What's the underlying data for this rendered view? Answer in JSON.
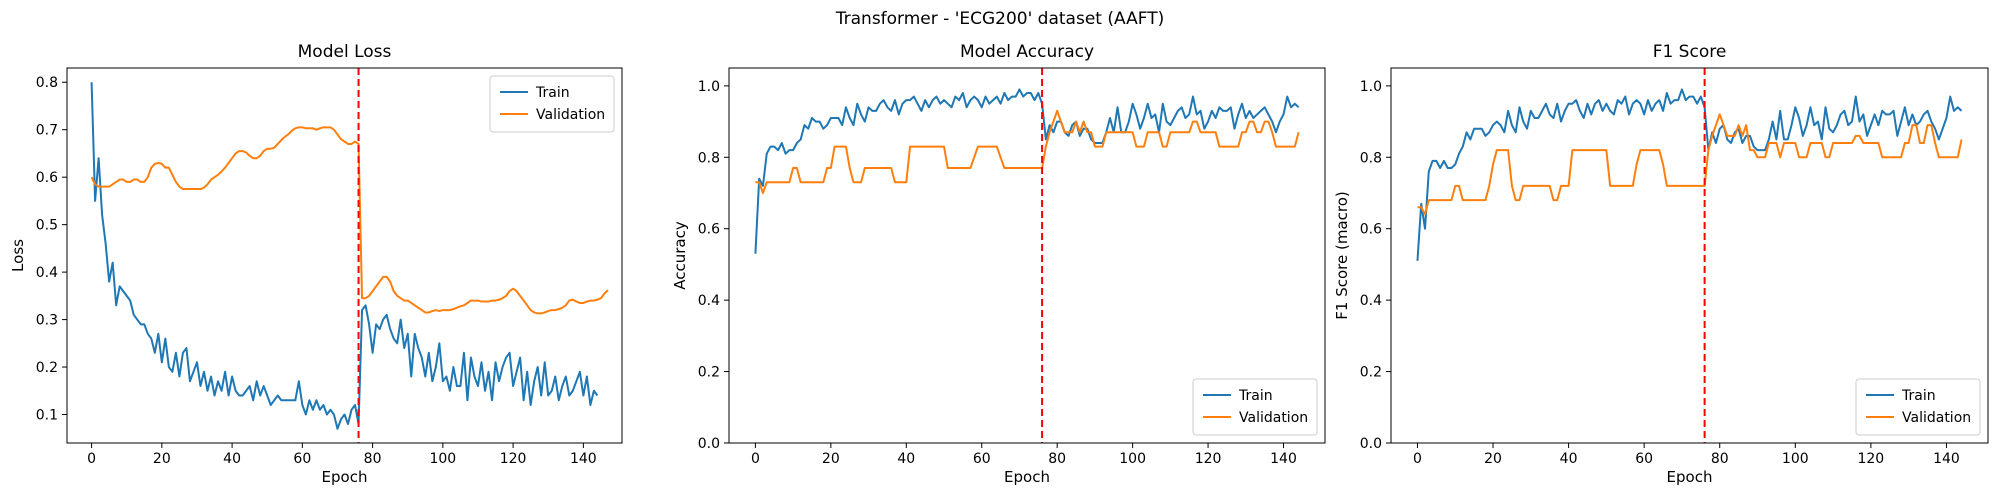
{
  "suptitle": "Transformer - 'ECG200' dataset (AAFT)",
  "colors": {
    "train": "#1f77b4",
    "validation": "#ff7f0e",
    "marker": "#ff0000"
  },
  "chart_data": [
    {
      "type": "line",
      "title": "Model Loss",
      "xlabel": "Epoch",
      "ylabel": "Loss",
      "xlim": [
        -7,
        151
      ],
      "ylim": [
        0.04,
        0.83
      ],
      "xticks": [
        0,
        20,
        40,
        60,
        80,
        100,
        120,
        140
      ],
      "yticks": [
        0.1,
        0.2,
        0.3,
        0.4,
        0.5,
        0.6,
        0.7,
        0.8
      ],
      "ytick_decimals": 1,
      "legend": "top-right",
      "vline_x": 76,
      "series": [
        {
          "name": "Train",
          "color": "#1f77b4",
          "values": [
            0.8,
            0.55,
            0.64,
            0.52,
            0.46,
            0.38,
            0.42,
            0.33,
            0.37,
            0.36,
            0.35,
            0.34,
            0.31,
            0.3,
            0.29,
            0.29,
            0.27,
            0.26,
            0.23,
            0.27,
            0.21,
            0.26,
            0.2,
            0.19,
            0.23,
            0.18,
            0.23,
            0.24,
            0.17,
            0.19,
            0.21,
            0.16,
            0.19,
            0.15,
            0.18,
            0.14,
            0.17,
            0.15,
            0.19,
            0.14,
            0.18,
            0.15,
            0.14,
            0.14,
            0.15,
            0.16,
            0.13,
            0.17,
            0.14,
            0.16,
            0.14,
            0.12,
            0.13,
            0.14,
            0.13,
            0.13,
            0.13,
            0.13,
            0.13,
            0.17,
            0.12,
            0.1,
            0.13,
            0.11,
            0.13,
            0.11,
            0.12,
            0.1,
            0.11,
            0.1,
            0.07,
            0.09,
            0.1,
            0.08,
            0.11,
            0.12,
            0.08,
            0.32,
            0.33,
            0.29,
            0.23,
            0.29,
            0.28,
            0.3,
            0.31,
            0.28,
            0.26,
            0.25,
            0.3,
            0.24,
            0.27,
            0.18,
            0.27,
            0.24,
            0.22,
            0.18,
            0.23,
            0.17,
            0.2,
            0.25,
            0.17,
            0.18,
            0.15,
            0.2,
            0.16,
            0.16,
            0.23,
            0.13,
            0.22,
            0.18,
            0.16,
            0.21,
            0.15,
            0.19,
            0.13,
            0.21,
            0.17,
            0.2,
            0.22,
            0.23,
            0.16,
            0.19,
            0.22,
            0.13,
            0.19,
            0.12,
            0.17,
            0.2,
            0.14,
            0.21,
            0.14,
            0.15,
            0.18,
            0.13,
            0.16,
            0.18,
            0.14,
            0.15,
            0.17,
            0.19,
            0.14,
            0.18,
            0.12,
            0.15,
            0.14
          ]
        },
        {
          "name": "Validation",
          "color": "#ff7f0e",
          "values": [
            0.6,
            0.585,
            0.58,
            0.58,
            0.58,
            0.58,
            0.585,
            0.59,
            0.595,
            0.595,
            0.59,
            0.59,
            0.595,
            0.595,
            0.59,
            0.59,
            0.6,
            0.62,
            0.628,
            0.63,
            0.628,
            0.62,
            0.62,
            0.605,
            0.59,
            0.58,
            0.575,
            0.575,
            0.575,
            0.575,
            0.575,
            0.575,
            0.578,
            0.585,
            0.595,
            0.6,
            0.605,
            0.612,
            0.62,
            0.63,
            0.64,
            0.65,
            0.655,
            0.655,
            0.652,
            0.645,
            0.64,
            0.64,
            0.645,
            0.655,
            0.66,
            0.66,
            0.662,
            0.67,
            0.678,
            0.685,
            0.69,
            0.698,
            0.703,
            0.705,
            0.705,
            0.703,
            0.703,
            0.703,
            0.7,
            0.703,
            0.705,
            0.705,
            0.705,
            0.7,
            0.69,
            0.68,
            0.675,
            0.67,
            0.67,
            0.675,
            0.67,
            0.345,
            0.345,
            0.35,
            0.36,
            0.37,
            0.38,
            0.39,
            0.39,
            0.38,
            0.36,
            0.35,
            0.345,
            0.34,
            0.34,
            0.335,
            0.33,
            0.325,
            0.32,
            0.315,
            0.315,
            0.318,
            0.32,
            0.318,
            0.32,
            0.32,
            0.32,
            0.322,
            0.325,
            0.328,
            0.33,
            0.335,
            0.34,
            0.34,
            0.34,
            0.338,
            0.338,
            0.338,
            0.34,
            0.34,
            0.342,
            0.345,
            0.35,
            0.36,
            0.365,
            0.36,
            0.35,
            0.34,
            0.33,
            0.32,
            0.315,
            0.313,
            0.313,
            0.315,
            0.318,
            0.32,
            0.32,
            0.322,
            0.325,
            0.33,
            0.34,
            0.342,
            0.338,
            0.335,
            0.335,
            0.338,
            0.34,
            0.34,
            0.342,
            0.345,
            0.355,
            0.362
          ]
        }
      ]
    },
    {
      "type": "line",
      "title": "Model Accuracy",
      "xlabel": "Epoch",
      "ylabel": "Accuracy",
      "xlim": [
        -7,
        151
      ],
      "ylim": [
        0,
        1.05
      ],
      "xticks": [
        0,
        20,
        40,
        60,
        80,
        100,
        120,
        140
      ],
      "yticks": [
        0.0,
        0.2,
        0.4,
        0.6,
        0.8,
        1.0
      ],
      "ytick_decimals": 1,
      "legend": "bottom-right",
      "vline_x": 76,
      "series": [
        {
          "name": "Train",
          "color": "#1f77b4",
          "values": [
            0.53,
            0.74,
            0.72,
            0.81,
            0.83,
            0.83,
            0.82,
            0.84,
            0.81,
            0.82,
            0.82,
            0.84,
            0.85,
            0.89,
            0.88,
            0.91,
            0.9,
            0.9,
            0.88,
            0.89,
            0.91,
            0.91,
            0.91,
            0.89,
            0.94,
            0.91,
            0.89,
            0.95,
            0.92,
            0.9,
            0.94,
            0.93,
            0.93,
            0.95,
            0.96,
            0.94,
            0.93,
            0.96,
            0.92,
            0.95,
            0.96,
            0.96,
            0.97,
            0.95,
            0.93,
            0.96,
            0.94,
            0.96,
            0.97,
            0.95,
            0.96,
            0.95,
            0.94,
            0.97,
            0.96,
            0.98,
            0.94,
            0.96,
            0.97,
            0.96,
            0.94,
            0.97,
            0.95,
            0.96,
            0.97,
            0.95,
            0.98,
            0.96,
            0.97,
            0.97,
            0.99,
            0.97,
            0.98,
            0.98,
            0.96,
            0.98,
            0.95,
            0.85,
            0.89,
            0.87,
            0.9,
            0.9,
            0.87,
            0.86,
            0.89,
            0.9,
            0.86,
            0.88,
            0.88,
            0.85,
            0.84,
            0.84,
            0.84,
            0.87,
            0.91,
            0.87,
            0.94,
            0.87,
            0.87,
            0.9,
            0.95,
            0.92,
            0.88,
            0.91,
            0.95,
            0.91,
            0.92,
            0.87,
            0.95,
            0.9,
            0.89,
            0.91,
            0.93,
            0.94,
            0.91,
            0.92,
            0.97,
            0.92,
            0.93,
            0.88,
            0.9,
            0.93,
            0.91,
            0.94,
            0.93,
            0.93,
            0.94,
            0.88,
            0.92,
            0.95,
            0.91,
            0.93,
            0.91,
            0.92,
            0.93,
            0.94,
            0.92,
            0.9,
            0.87,
            0.9,
            0.92,
            0.97,
            0.94,
            0.95,
            0.94
          ]
        },
        {
          "name": "Validation",
          "color": "#ff7f0e",
          "values": [
            0.73,
            0.73,
            0.7,
            0.73,
            0.73,
            0.73,
            0.73,
            0.73,
            0.73,
            0.73,
            0.77,
            0.77,
            0.73,
            0.73,
            0.73,
            0.73,
            0.73,
            0.73,
            0.73,
            0.77,
            0.77,
            0.83,
            0.83,
            0.83,
            0.83,
            0.77,
            0.73,
            0.73,
            0.73,
            0.77,
            0.77,
            0.77,
            0.77,
            0.77,
            0.77,
            0.77,
            0.77,
            0.73,
            0.73,
            0.73,
            0.73,
            0.83,
            0.83,
            0.83,
            0.83,
            0.83,
            0.83,
            0.83,
            0.83,
            0.83,
            0.83,
            0.77,
            0.77,
            0.77,
            0.77,
            0.77,
            0.77,
            0.77,
            0.8,
            0.83,
            0.83,
            0.83,
            0.83,
            0.83,
            0.83,
            0.8,
            0.77,
            0.77,
            0.77,
            0.77,
            0.77,
            0.77,
            0.77,
            0.77,
            0.77,
            0.77,
            0.77,
            0.83,
            0.87,
            0.9,
            0.93,
            0.9,
            0.87,
            0.87,
            0.87,
            0.9,
            0.87,
            0.9,
            0.87,
            0.87,
            0.83,
            0.83,
            0.83,
            0.87,
            0.87,
            0.87,
            0.87,
            0.87,
            0.87,
            0.87,
            0.87,
            0.83,
            0.83,
            0.83,
            0.87,
            0.87,
            0.87,
            0.87,
            0.83,
            0.83,
            0.87,
            0.87,
            0.87,
            0.87,
            0.87,
            0.87,
            0.9,
            0.9,
            0.87,
            0.87,
            0.87,
            0.87,
            0.87,
            0.83,
            0.83,
            0.83,
            0.83,
            0.83,
            0.83,
            0.87,
            0.87,
            0.9,
            0.9,
            0.87,
            0.87,
            0.9,
            0.9,
            0.87,
            0.83,
            0.83,
            0.83,
            0.83,
            0.83,
            0.83,
            0.87
          ]
        }
      ]
    },
    {
      "type": "line",
      "title": "F1 Score",
      "xlabel": "Epoch",
      "ylabel": "F1 Score (macro)",
      "xlim": [
        -7,
        151
      ],
      "ylim": [
        0,
        1.05
      ],
      "xticks": [
        0,
        20,
        40,
        60,
        80,
        100,
        120,
        140
      ],
      "yticks": [
        0.0,
        0.2,
        0.4,
        0.6,
        0.8,
        1.0
      ],
      "ytick_decimals": 1,
      "legend": "bottom-right",
      "vline_x": 76,
      "series": [
        {
          "name": "Train",
          "color": "#1f77b4",
          "values": [
            0.51,
            0.67,
            0.6,
            0.76,
            0.79,
            0.79,
            0.77,
            0.79,
            0.77,
            0.77,
            0.78,
            0.81,
            0.83,
            0.87,
            0.85,
            0.88,
            0.88,
            0.88,
            0.86,
            0.87,
            0.89,
            0.9,
            0.89,
            0.87,
            0.93,
            0.89,
            0.87,
            0.94,
            0.9,
            0.88,
            0.93,
            0.91,
            0.91,
            0.93,
            0.95,
            0.92,
            0.91,
            0.95,
            0.9,
            0.93,
            0.95,
            0.95,
            0.96,
            0.93,
            0.91,
            0.95,
            0.92,
            0.95,
            0.96,
            0.93,
            0.95,
            0.93,
            0.92,
            0.96,
            0.95,
            0.97,
            0.92,
            0.95,
            0.96,
            0.95,
            0.92,
            0.96,
            0.93,
            0.95,
            0.96,
            0.93,
            0.98,
            0.95,
            0.96,
            0.96,
            0.99,
            0.96,
            0.97,
            0.97,
            0.95,
            0.97,
            0.94,
            0.82,
            0.87,
            0.84,
            0.88,
            0.89,
            0.85,
            0.84,
            0.87,
            0.88,
            0.84,
            0.86,
            0.86,
            0.83,
            0.82,
            0.82,
            0.82,
            0.85,
            0.9,
            0.85,
            0.93,
            0.85,
            0.85,
            0.89,
            0.94,
            0.91,
            0.86,
            0.89,
            0.94,
            0.89,
            0.9,
            0.85,
            0.94,
            0.88,
            0.87,
            0.89,
            0.92,
            0.93,
            0.89,
            0.9,
            0.97,
            0.9,
            0.92,
            0.86,
            0.89,
            0.92,
            0.89,
            0.93,
            0.92,
            0.92,
            0.93,
            0.86,
            0.9,
            0.94,
            0.89,
            0.92,
            0.89,
            0.9,
            0.92,
            0.93,
            0.9,
            0.88,
            0.85,
            0.88,
            0.91,
            0.97,
            0.93,
            0.94,
            0.93
          ]
        },
        {
          "name": "Validation",
          "color": "#ff7f0e",
          "values": [
            0.66,
            0.66,
            0.64,
            0.68,
            0.68,
            0.68,
            0.68,
            0.68,
            0.68,
            0.68,
            0.72,
            0.72,
            0.68,
            0.68,
            0.68,
            0.68,
            0.68,
            0.68,
            0.68,
            0.72,
            0.78,
            0.82,
            0.82,
            0.82,
            0.82,
            0.72,
            0.68,
            0.68,
            0.72,
            0.72,
            0.72,
            0.72,
            0.72,
            0.72,
            0.72,
            0.72,
            0.68,
            0.68,
            0.72,
            0.72,
            0.72,
            0.82,
            0.82,
            0.82,
            0.82,
            0.82,
            0.82,
            0.82,
            0.82,
            0.82,
            0.82,
            0.72,
            0.72,
            0.72,
            0.72,
            0.72,
            0.72,
            0.72,
            0.78,
            0.82,
            0.82,
            0.82,
            0.82,
            0.82,
            0.82,
            0.78,
            0.72,
            0.72,
            0.72,
            0.72,
            0.72,
            0.72,
            0.72,
            0.72,
            0.72,
            0.72,
            0.72,
            0.82,
            0.86,
            0.89,
            0.92,
            0.89,
            0.86,
            0.86,
            0.86,
            0.89,
            0.86,
            0.89,
            0.82,
            0.82,
            0.8,
            0.8,
            0.8,
            0.84,
            0.84,
            0.84,
            0.8,
            0.84,
            0.84,
            0.84,
            0.84,
            0.8,
            0.8,
            0.8,
            0.84,
            0.84,
            0.84,
            0.84,
            0.8,
            0.8,
            0.84,
            0.84,
            0.84,
            0.84,
            0.84,
            0.84,
            0.86,
            0.86,
            0.84,
            0.84,
            0.84,
            0.84,
            0.84,
            0.8,
            0.8,
            0.8,
            0.8,
            0.8,
            0.8,
            0.84,
            0.84,
            0.89,
            0.89,
            0.84,
            0.84,
            0.89,
            0.89,
            0.84,
            0.8,
            0.8,
            0.8,
            0.8,
            0.8,
            0.8,
            0.85
          ]
        }
      ]
    }
  ]
}
